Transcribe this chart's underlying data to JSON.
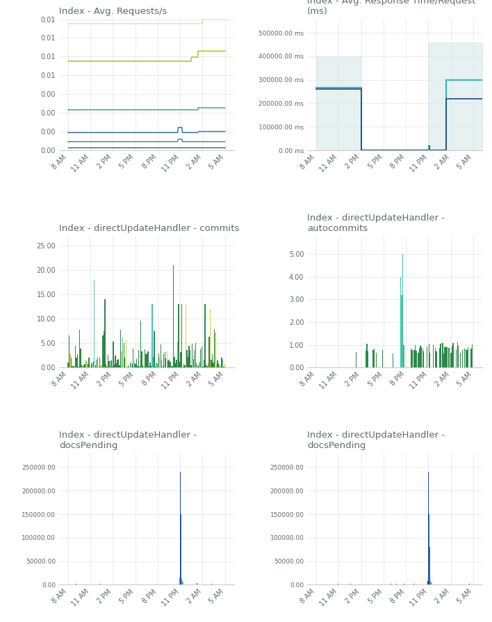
{
  "background_color": "#ffffff",
  "text_color": "#606870",
  "grid_color": "#e8e8e8",
  "title_fontsize": 9.5,
  "tick_fontsize": 7,
  "x_tick_labels": [
    "8 AM",
    "11 AM",
    "2 PM",
    "5 PM",
    "8 PM",
    "11 PM",
    "2 AM",
    "5 AM"
  ],
  "plots": [
    {
      "title": "Index - Avg. Requests/s",
      "ylim": [
        0,
        0.013
      ],
      "ytick_vals": [
        0.0,
        0.00185,
        0.0037,
        0.00555,
        0.0074,
        0.00925,
        0.0111,
        0.01295
      ],
      "ytick_labels": [
        "0.00",
        "0.00",
        "0.00",
        "0.00",
        "0.01",
        "0.01",
        "0.01",
        "0.01"
      ]
    },
    {
      "title": "Index - Avg. Response Time/Request\n(ms)",
      "ylim": [
        0,
        560000
      ],
      "ytick_vals": [
        0,
        100000,
        200000,
        300000,
        400000,
        500000
      ],
      "ytick_labels": [
        "0.00 ms",
        "100000.00 ms",
        "200000.00 ms",
        "300000.00 ms",
        "400000.00 ms",
        "500000.00 ms"
      ]
    },
    {
      "title": "Index - directUpdateHandler - commits",
      "ylim": [
        0,
        27
      ],
      "ytick_vals": [
        0,
        5,
        10,
        15,
        20,
        25
      ],
      "ytick_labels": [
        "0.00",
        "5.00",
        "10.00",
        "15.00",
        "20.00",
        "25.00"
      ]
    },
    {
      "title": "Index - directUpdateHandler -\nautocommits",
      "ylim": [
        0,
        5.8
      ],
      "ytick_vals": [
        0,
        1,
        2,
        3,
        4,
        5
      ],
      "ytick_labels": [
        "0.00",
        "1.00",
        "2.00",
        "3.00",
        "4.00",
        "5.00"
      ]
    },
    {
      "title": "Index - directUpdateHandler -\ndocsPending",
      "ylim": [
        0,
        280000
      ],
      "ytick_vals": [
        0,
        50000,
        100000,
        150000,
        200000,
        250000
      ],
      "ytick_labels": [
        "0.00",
        "50000.00",
        "100000.00",
        "150000.00",
        "200000.00",
        "250000.00"
      ]
    },
    {
      "title": "Index - directUpdateHandler -\ndocsPending",
      "ylim": [
        0,
        280000
      ],
      "ytick_vals": [
        0,
        50000,
        100000,
        150000,
        200000,
        250000
      ],
      "ytick_labels": [
        "0.00",
        "50000.00",
        "100000.00",
        "150000.00",
        "200000.00",
        "250000.00"
      ]
    }
  ]
}
